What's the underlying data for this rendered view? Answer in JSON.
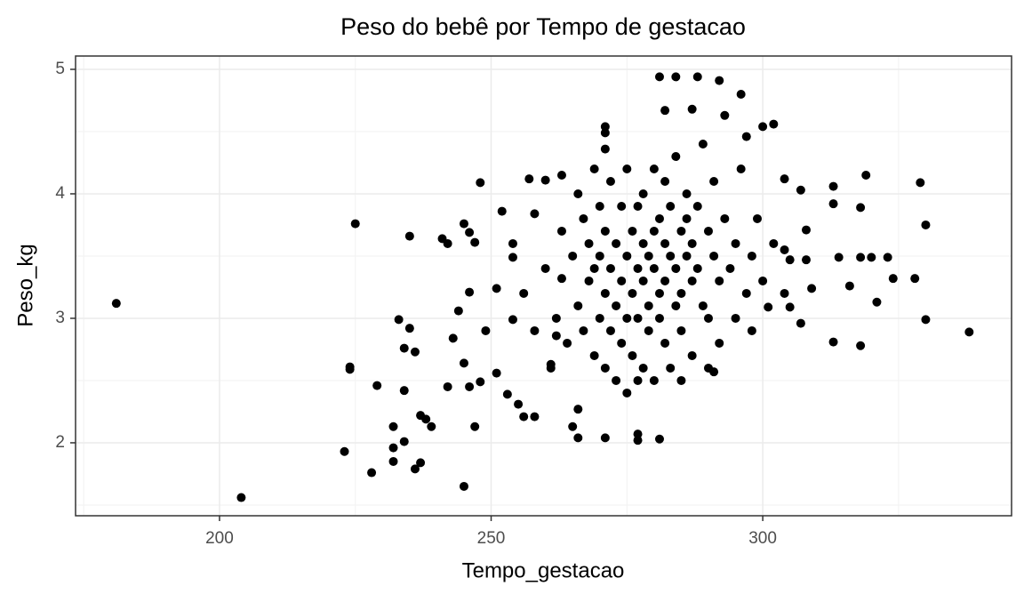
{
  "chart_data": {
    "type": "scatter",
    "title": "Peso do bebê por Tempo de gestacao",
    "x_label": "Tempo_gestacao",
    "y_label": "Peso_kg",
    "xlim": [
      173.5,
      345.8
    ],
    "ylim": [
      1.414,
      5.107
    ],
    "xticks": [
      200,
      250,
      300
    ],
    "yticks": [
      2,
      3,
      4,
      5
    ],
    "x_minor_grid": [
      175,
      225,
      275,
      325
    ],
    "y_minor_grid": [
      1.5,
      2.5,
      3.5,
      4.5
    ],
    "grid": true,
    "color": "#000000",
    "x": [
      181,
      204,
      223,
      225,
      224,
      224,
      228,
      229,
      232,
      232,
      232,
      233,
      234,
      234,
      234,
      235,
      236,
      237,
      237,
      238,
      239,
      235,
      236,
      241,
      242,
      242,
      243,
      244,
      245,
      245,
      246,
      246,
      245,
      246,
      247,
      247,
      248,
      248,
      249,
      251,
      251,
      252,
      253,
      254,
      254,
      254,
      255,
      256,
      257,
      258,
      258,
      260,
      263,
      263,
      261,
      262,
      265,
      266,
      266,
      271,
      271,
      271,
      271,
      277,
      277,
      281,
      281,
      284,
      288,
      292,
      287,
      296,
      293,
      282,
      291,
      297,
      300,
      302,
      304,
      307,
      308,
      304,
      305,
      308,
      309,
      307,
      305,
      301,
      313,
      313,
      313,
      314,
      316,
      318,
      318,
      318,
      319,
      320,
      321,
      323,
      324,
      328,
      329,
      330,
      330,
      338,
      265,
      266,
      267,
      267,
      268,
      268,
      269,
      269,
      270,
      270,
      270,
      271,
      271,
      271,
      272,
      272,
      272,
      273,
      273,
      273,
      274,
      274,
      274,
      275,
      275,
      275,
      275,
      276,
      276,
      276,
      277,
      277,
      277,
      278,
      278,
      278,
      278,
      279,
      279,
      279,
      280,
      280,
      280,
      280,
      281,
      281,
      281,
      282,
      282,
      282,
      282,
      283,
      283,
      283,
      284,
      284,
      284,
      285,
      285,
      285,
      286,
      286,
      286,
      287,
      287,
      287,
      288,
      288,
      289,
      289,
      290,
      290,
      291,
      291,
      292,
      292,
      293,
      294,
      295,
      295,
      296,
      297,
      298,
      299,
      300,
      262,
      263,
      264,
      260,
      258,
      256,
      261,
      266,
      269,
      277,
      285,
      290,
      298,
      302,
      304
    ],
    "values": [
      3.12,
      1.56,
      1.93,
      3.76,
      2.61,
      2.59,
      1.76,
      2.46,
      2.13,
      1.96,
      1.85,
      2.99,
      2.42,
      2.76,
      2.01,
      3.66,
      1.79,
      1.84,
      2.22,
      2.19,
      2.13,
      2.92,
      2.73,
      3.64,
      3.6,
      2.45,
      2.84,
      3.06,
      1.65,
      3.76,
      3.69,
      3.21,
      2.64,
      2.45,
      3.61,
      2.13,
      4.09,
      2.49,
      2.9,
      3.24,
      2.56,
      3.86,
      2.39,
      3.6,
      3.49,
      2.99,
      2.31,
      2.21,
      4.12,
      2.21,
      3.84,
      4.11,
      4.15,
      3.32,
      2.63,
      2.86,
      2.13,
      2.04,
      2.27,
      4.49,
      4.36,
      4.54,
      2.04,
      2.07,
      2.02,
      2.03,
      4.94,
      4.94,
      4.94,
      4.91,
      4.68,
      4.8,
      4.63,
      4.67,
      2.57,
      4.46,
      4.54,
      4.56,
      4.12,
      4.03,
      3.71,
      3.55,
      3.47,
      3.47,
      3.24,
      2.96,
      3.09,
      3.09,
      4.06,
      3.92,
      2.81,
      3.49,
      3.26,
      3.89,
      2.78,
      3.49,
      4.15,
      3.49,
      3.13,
      3.49,
      3.32,
      3.32,
      4.09,
      3.75,
      2.99,
      2.89,
      3.5,
      3.1,
      3.8,
      2.9,
      3.3,
      3.6,
      2.7,
      3.4,
      3.0,
      3.9,
      3.5,
      3.2,
      2.6,
      3.7,
      3.4,
      4.1,
      2.9,
      3.6,
      3.1,
      2.5,
      3.3,
      3.9,
      2.8,
      3.5,
      3.0,
      4.2,
      2.4,
      3.7,
      3.2,
      2.7,
      3.4,
      3.9,
      3.0,
      3.6,
      3.3,
      2.6,
      4.0,
      3.5,
      3.1,
      2.9,
      3.7,
      3.4,
      4.2,
      2.5,
      3.2,
      3.8,
      3.0,
      3.6,
      3.3,
      4.1,
      2.8,
      3.5,
      3.9,
      2.6,
      3.4,
      3.1,
      4.3,
      3.7,
      3.2,
      2.9,
      3.8,
      3.5,
      4.0,
      3.3,
      2.7,
      3.6,
      3.9,
      3.4,
      3.1,
      4.4,
      3.7,
      3.0,
      3.5,
      4.1,
      3.3,
      2.8,
      3.8,
      3.4,
      3.6,
      3.0,
      4.2,
      3.2,
      3.5,
      3.8,
      3.3,
      3.0,
      3.7,
      2.8,
      3.4,
      2.9,
      3.2,
      2.6,
      4.0,
      4.2,
      2.5,
      2.5,
      2.6,
      2.9,
      3.6,
      3.2
    ]
  }
}
